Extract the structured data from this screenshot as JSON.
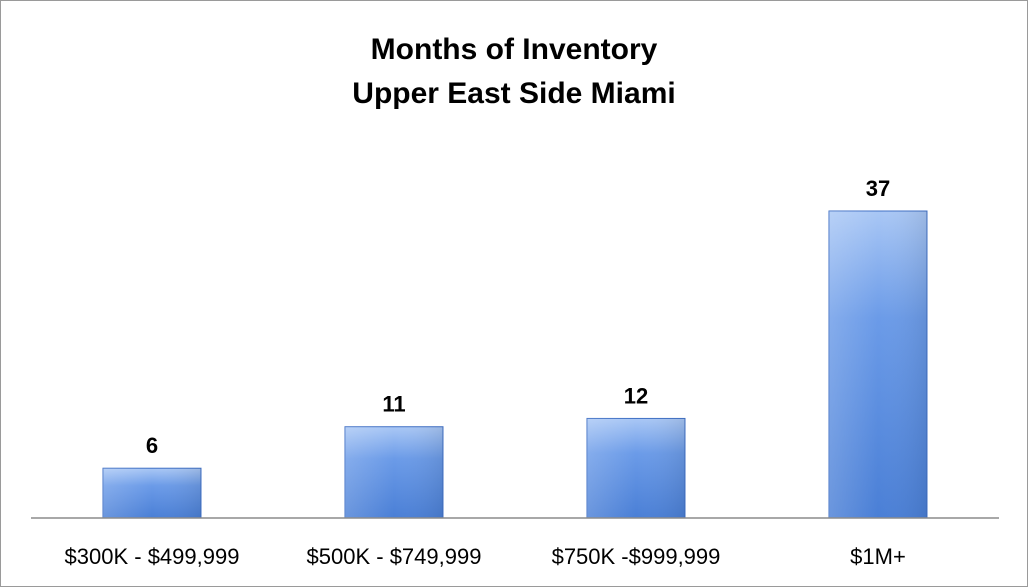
{
  "chart_data": {
    "type": "bar",
    "title": "Months of Inventory",
    "subtitle": "Upper East Side Miami",
    "categories": [
      "$300K - $499,999",
      "$500K - $749,999",
      "$750K -$999,999",
      "$1M+"
    ],
    "values": [
      6,
      11,
      12,
      37
    ],
    "ylim": [
      0,
      37
    ],
    "grid": false,
    "legend": "none",
    "colors": {
      "bar_top": "#a9c7f5",
      "bar_mid": "#6b9be8",
      "bar_bottom": "#4a7fd6",
      "bar_edge": "#3f6fc4",
      "axis": "#8c8c8c"
    }
  }
}
